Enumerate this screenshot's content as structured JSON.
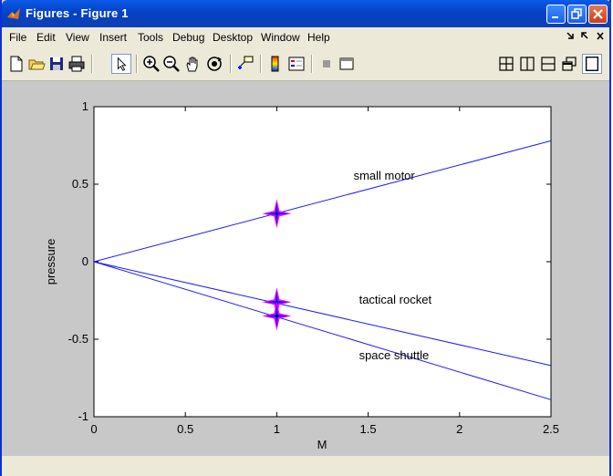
{
  "window": {
    "title": "Figures - Figure 1",
    "controls": [
      "minimize-icon",
      "restore-icon",
      "close-icon"
    ]
  },
  "menubar": {
    "items": [
      "File",
      "Edit",
      "View",
      "Insert",
      "Tools",
      "Debug",
      "Desktop",
      "Window",
      "Help"
    ]
  },
  "toolbar": {
    "tools": [
      "new-figure-icon",
      "open-file-icon",
      "save-icon",
      "print-icon",
      "edit-plot-arrow-icon",
      "zoom-in-icon",
      "zoom-out-icon",
      "pan-hand-icon",
      "rotate-3d-icon",
      "data-cursor-icon",
      "colorbar-icon",
      "legend-icon",
      "hide-plot-tools-icon",
      "show-plot-tools-icon"
    ],
    "layout_tools": [
      "tile-icon",
      "split-vertical-icon",
      "split-horizontal-icon",
      "float-icon",
      "maximize-icon"
    ]
  },
  "colors": {
    "line": "#1a1aff",
    "marker_outer": "#ff00ff",
    "marker_inner": "#1a1aff",
    "figure_bg": "#c8c8c8",
    "title_bar": "#0542c4"
  },
  "chart_data": {
    "type": "line",
    "xlabel": "M",
    "ylabel": "pressure",
    "xlim": [
      0,
      2.5
    ],
    "ylim": [
      -1,
      1
    ],
    "xticks": [
      "0",
      "0.5",
      "1",
      "1.5",
      "2",
      "2.5"
    ],
    "yticks": [
      "1",
      "0.5",
      "0",
      "-0.5",
      "-1"
    ],
    "xtick_values": [
      0,
      0.5,
      1,
      1.5,
      2,
      2.5
    ],
    "ytick_values": [
      1,
      0.5,
      0,
      -0.5,
      -1
    ],
    "grid": false,
    "series": [
      {
        "name": "small motor",
        "x": [
          0,
          2.5
        ],
        "y": [
          0,
          0.78
        ],
        "marker_x": 1,
        "marker_y": 0.31,
        "label_x": 1.42,
        "label_y": 0.53
      },
      {
        "name": "tactical rocket",
        "x": [
          0,
          2.5
        ],
        "y": [
          0,
          -0.67
        ],
        "marker_x": 1,
        "marker_y": -0.26,
        "label_x": 1.45,
        "label_y": -0.27
      },
      {
        "name": "space shuttle",
        "x": [
          0,
          2.5
        ],
        "y": [
          0,
          -0.89
        ],
        "marker_x": 1,
        "marker_y": -0.35,
        "label_x": 1.45,
        "label_y": -0.63
      }
    ]
  }
}
